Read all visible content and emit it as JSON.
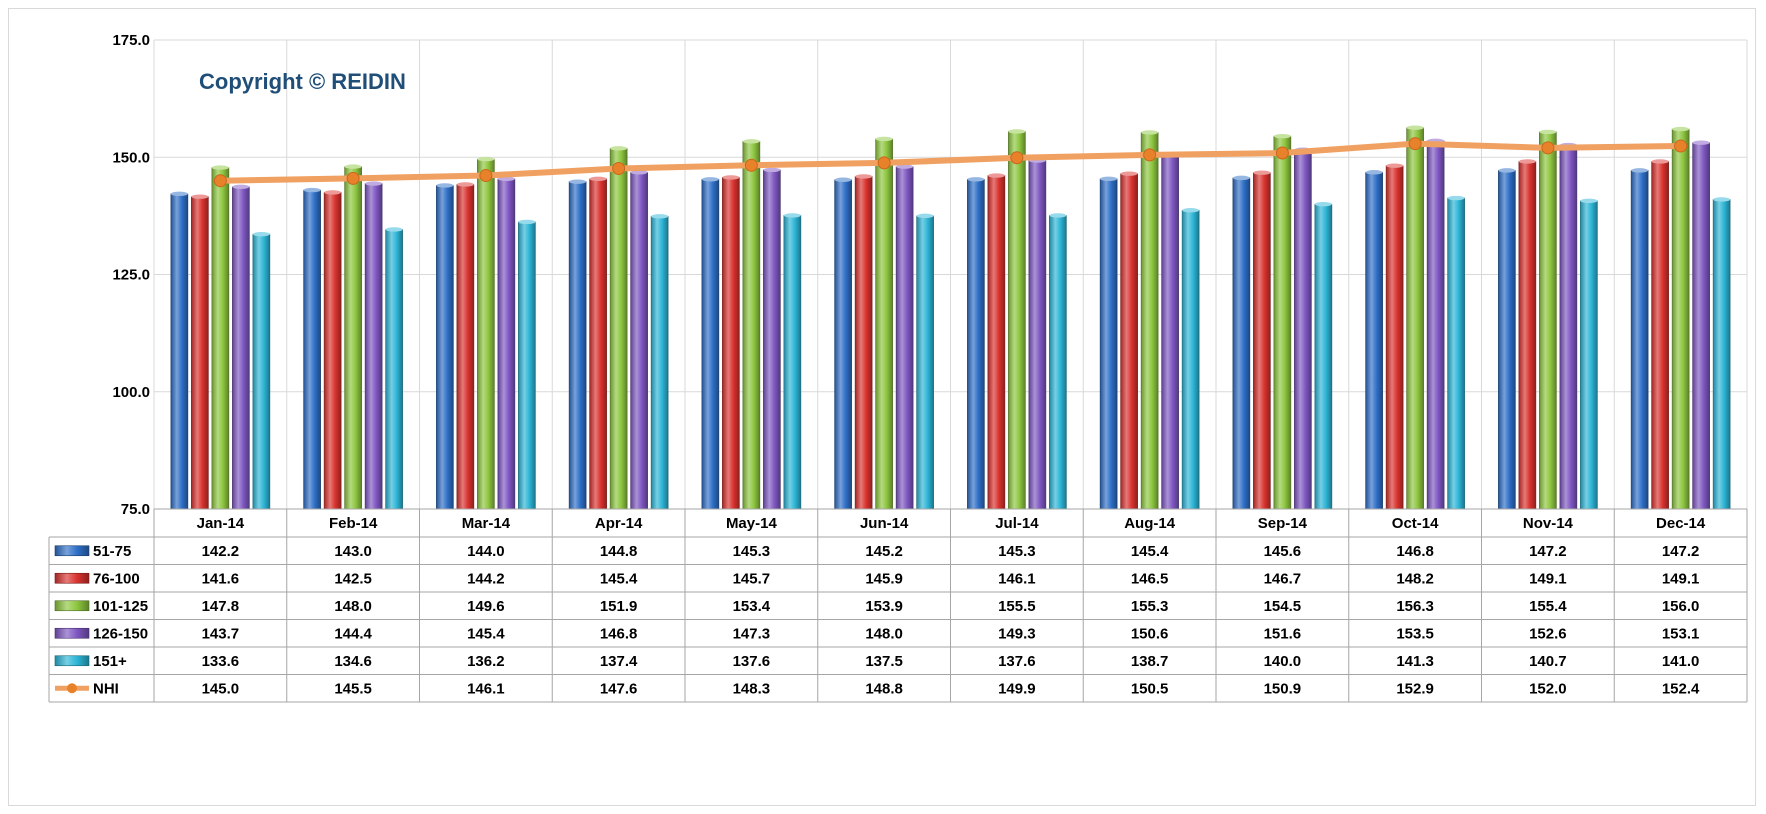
{
  "watermark": "Copyright © REIDIN",
  "chart_data": {
    "type": "bar",
    "categories": [
      "Jan-14",
      "Feb-14",
      "Mar-14",
      "Apr-14",
      "May-14",
      "Jun-14",
      "Jul-14",
      "Aug-14",
      "Sep-14",
      "Oct-14",
      "Nov-14",
      "Dec-14"
    ],
    "ylim": [
      75,
      175
    ],
    "yticks": [
      "175.0",
      "150.0",
      "125.0",
      "100.0",
      "75.0"
    ],
    "grid": true,
    "legend_placement": "data-table-left",
    "series": [
      {
        "name": "51-75",
        "type": "bar",
        "color": "#2e6fc7",
        "labels": [
          "142.2",
          "143.0",
          "144.0",
          "144.8",
          "145.3",
          "145.2",
          "145.3",
          "145.4",
          "145.6",
          "146.8",
          "147.2",
          "147.2"
        ],
        "values": [
          142.2,
          143.0,
          144.0,
          144.8,
          145.3,
          145.2,
          145.3,
          145.4,
          145.6,
          146.8,
          147.2,
          147.2
        ]
      },
      {
        "name": "76-100",
        "type": "bar",
        "color": "#d9322e",
        "labels": [
          "141.6",
          "142.5",
          "144.2",
          "145.4",
          "145.7",
          "145.9",
          "146.1",
          "146.5",
          "146.7",
          "148.2",
          "149.1",
          "149.1"
        ],
        "values": [
          141.6,
          142.5,
          144.2,
          145.4,
          145.7,
          145.9,
          146.1,
          146.5,
          146.7,
          148.2,
          149.1,
          149.1
        ]
      },
      {
        "name": "101-125",
        "type": "bar",
        "color": "#8dc63f",
        "labels": [
          "147.8",
          "148.0",
          "149.6",
          "151.9",
          "153.4",
          "153.9",
          "155.5",
          "155.3",
          "154.5",
          "156.3",
          "155.4",
          "156.0"
        ],
        "values": [
          147.8,
          148.0,
          149.6,
          151.9,
          153.4,
          153.9,
          155.5,
          155.3,
          154.5,
          156.3,
          155.4,
          156.0
        ]
      },
      {
        "name": "126-150",
        "type": "bar",
        "color": "#7e57c2",
        "labels": [
          "143.7",
          "144.4",
          "145.4",
          "146.8",
          "147.3",
          "148.0",
          "149.3",
          "150.6",
          "151.6",
          "153.5",
          "152.6",
          "153.1"
        ],
        "values": [
          143.7,
          144.4,
          145.4,
          146.8,
          147.3,
          148.0,
          149.3,
          150.6,
          151.6,
          153.5,
          152.6,
          153.1
        ]
      },
      {
        "name": "151+",
        "type": "bar",
        "color": "#2cb5d6",
        "labels": [
          "133.6",
          "134.6",
          "136.2",
          "137.4",
          "137.6",
          "137.5",
          "137.6",
          "138.7",
          "140.0",
          "141.3",
          "140.7",
          "141.0"
        ],
        "values": [
          133.6,
          134.6,
          136.2,
          137.4,
          137.6,
          137.5,
          137.6,
          138.7,
          140.0,
          141.3,
          140.7,
          141.0
        ]
      },
      {
        "name": "NHI",
        "type": "line",
        "color": "#f0a060",
        "marker_color": "#e8822a",
        "labels": [
          "145.0",
          "145.5",
          "146.1",
          "147.6",
          "148.3",
          "148.8",
          "149.9",
          "150.5",
          "150.9",
          "152.9",
          "152.0",
          "152.4"
        ],
        "values": [
          145.0,
          145.5,
          146.1,
          147.6,
          148.3,
          148.8,
          149.9,
          150.5,
          150.9,
          152.9,
          152.0,
          152.4
        ]
      }
    ]
  }
}
